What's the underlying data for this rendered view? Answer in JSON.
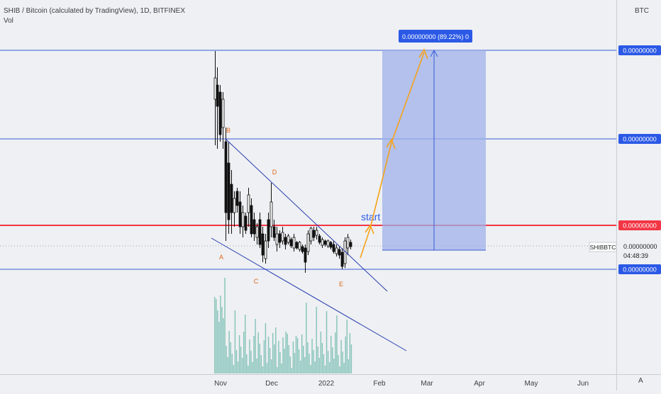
{
  "header": {
    "title": "SHIB / Bitcoin (calculated by TradingView), 1D, BITFINEX",
    "vol_label": "Vol",
    "currency": "BTC",
    "scale_mode": "A"
  },
  "colors": {
    "background": "#eef0f3",
    "level_line": "#3b5bd6",
    "resistance_line": "#f23645",
    "pattern_line": "#2a3fb0",
    "pattern_label": "#e0661b",
    "arrow": "#f6a21a",
    "target_box": "#9fb2ea",
    "volume": "#5fb3a4",
    "candle_up": "#ffffff",
    "candle_down": "#111111",
    "tag_blue": "#2b59e6",
    "tag_red": "#f23645"
  },
  "price_scale": {
    "tags": [
      {
        "id": "top",
        "label": "0.00000000",
        "color": "blue"
      },
      {
        "id": "upper",
        "label": "0.00000000",
        "color": "blue"
      },
      {
        "id": "resistance",
        "label": "0.00000000",
        "color": "red"
      },
      {
        "id": "bottom",
        "label": "0.00000000",
        "color": "blue"
      }
    ],
    "symbol_tag": "SHIBBTC",
    "last_price": "0.00000000",
    "countdown": "04:48:39"
  },
  "annotations": {
    "measure_label": "0.00000000 (89.22%) 0",
    "start_label": "start",
    "pattern_points": [
      "A",
      "B",
      "C",
      "D",
      "E"
    ]
  },
  "chart_data": {
    "type": "candlestick",
    "symbol": "SHIBBTC",
    "interval": "1D",
    "exchange": "BITFINEX",
    "x_tick_labels": [
      "Nov",
      "Dec",
      "2022",
      "Feb",
      "Mar",
      "Apr",
      "May",
      "Jun"
    ],
    "price_levels": [
      "0.00000000",
      "0.00000000",
      "0.00000000",
      "0.00000000"
    ],
    "target_move_percent": 89.22,
    "grid": false
  }
}
